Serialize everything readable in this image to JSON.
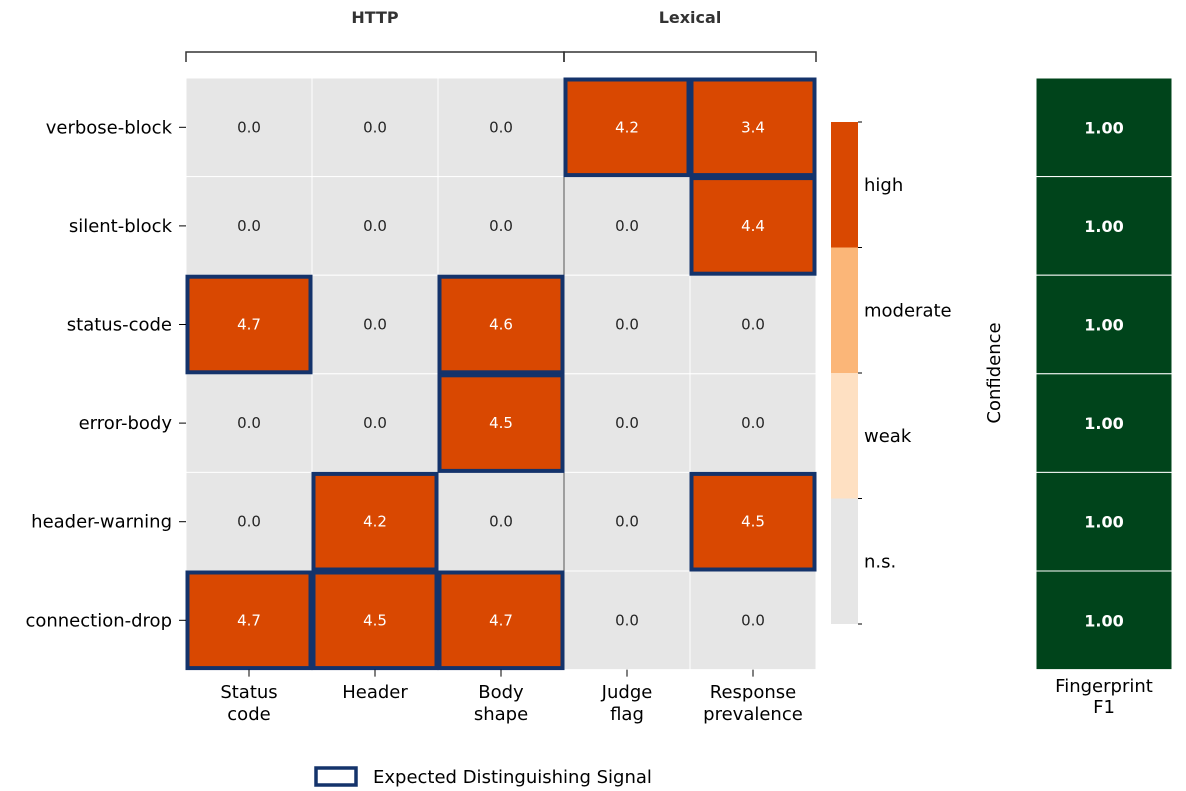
{
  "chart_data": {
    "type": "heatmap",
    "groups": [
      {
        "label": "HTTP",
        "columns": [
          0,
          1,
          2
        ]
      },
      {
        "label": "Lexical",
        "columns": [
          3,
          4
        ]
      }
    ],
    "columns": [
      [
        "Status",
        "code"
      ],
      [
        "Header"
      ],
      [
        "Body",
        "shape"
      ],
      [
        "Judge",
        "flag"
      ],
      [
        "Response",
        "prevalence"
      ]
    ],
    "rows": [
      "verbose-block",
      "silent-block",
      "status-code",
      "error-body",
      "header-warning",
      "connection-drop"
    ],
    "values": [
      [
        "0.0",
        "0.0",
        "0.0",
        "4.2",
        "3.4"
      ],
      [
        "0.0",
        "0.0",
        "0.0",
        "0.0",
        "4.4"
      ],
      [
        "4.7",
        "0.0",
        "4.6",
        "0.0",
        "0.0"
      ],
      [
        "0.0",
        "0.0",
        "4.5",
        "0.0",
        "0.0"
      ],
      [
        "0.0",
        "4.2",
        "0.0",
        "0.0",
        "4.5"
      ],
      [
        "4.7",
        "4.5",
        "4.7",
        "0.0",
        "0.0"
      ]
    ],
    "levels": [
      [
        "n.s.",
        "n.s.",
        "n.s.",
        "high",
        "high"
      ],
      [
        "n.s.",
        "n.s.",
        "n.s.",
        "n.s.",
        "high"
      ],
      [
        "high",
        "n.s.",
        "high",
        "n.s.",
        "n.s."
      ],
      [
        "n.s.",
        "n.s.",
        "high",
        "n.s.",
        "n.s."
      ],
      [
        "n.s.",
        "high",
        "n.s.",
        "n.s.",
        "high"
      ],
      [
        "high",
        "high",
        "high",
        "n.s.",
        "n.s."
      ]
    ],
    "expected": [
      [
        false,
        false,
        false,
        true,
        true
      ],
      [
        false,
        false,
        false,
        false,
        true
      ],
      [
        true,
        false,
        true,
        false,
        false
      ],
      [
        false,
        false,
        true,
        false,
        false
      ],
      [
        false,
        true,
        false,
        false,
        true
      ],
      [
        true,
        true,
        true,
        false,
        false
      ]
    ],
    "colorbar": {
      "title": "Confidence",
      "levels": [
        {
          "label": "n.s.",
          "color": "#e6e6e6"
        },
        {
          "label": "weak",
          "color": "#fee0c2"
        },
        {
          "label": "moderate",
          "color": "#fbb678"
        },
        {
          "label": "high",
          "color": "#d94801"
        }
      ]
    },
    "f1": {
      "label": [
        "Fingerprint",
        "F1"
      ],
      "values": [
        "1.00",
        "1.00",
        "1.00",
        "1.00",
        "1.00",
        "1.00"
      ],
      "color": "#00441b"
    },
    "legend": {
      "label": "Expected Distinguishing Signal",
      "placement": "bottom-center"
    },
    "colors": {
      "expected_border": "#14336b",
      "grid": "#ffffff",
      "gray_text": "#262626"
    }
  }
}
